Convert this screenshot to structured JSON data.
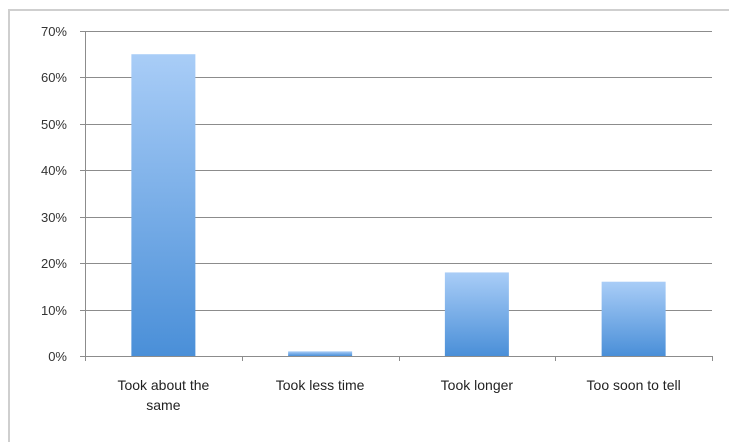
{
  "chart_data": {
    "type": "bar",
    "title": "",
    "xlabel": "",
    "ylabel": "",
    "categories": [
      [
        "Took about the",
        "same"
      ],
      [
        "Took less time"
      ],
      [
        "Took longer"
      ],
      [
        "Too soon to tell"
      ]
    ],
    "values": [
      65,
      1,
      18,
      16
    ],
    "ylim": [
      0,
      70
    ],
    "yticks": [
      0,
      10,
      20,
      30,
      40,
      50,
      60,
      70
    ],
    "ytick_labels": [
      "0%",
      "10%",
      "20%",
      "30%",
      "40%",
      "50%",
      "60%",
      "70%"
    ],
    "value_unit": "%",
    "grid": true,
    "legend": "none",
    "colors": {
      "bar_top": "#a9cdf7",
      "bar_bottom": "#4a8fd8",
      "grid": "#8c8c8c",
      "axis": "#8c8c8c",
      "text": "#222222"
    }
  }
}
